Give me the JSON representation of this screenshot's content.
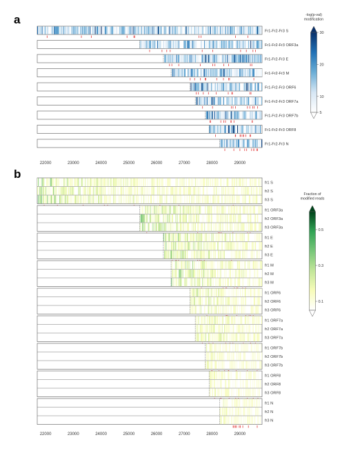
{
  "panel_a": {
    "letter": "a"
  },
  "panel_b": {
    "letter": "b"
  },
  "chart_data": [
    {
      "type": "heatmap",
      "panel": "a",
      "x_range": [
        21700,
        29800
      ],
      "x_ticks": [
        22000,
        23000,
        24000,
        25000,
        26000,
        27000,
        28000,
        29000
      ],
      "tracks": [
        {
          "label": "Fr1-Fr2-Fr3 S",
          "start": 21700
        },
        {
          "label": "Fr1-Fr2-Fr3 ORF3a",
          "start": 25393
        },
        {
          "label": "Fr1-Fr2-Fr3 E",
          "start": 26245
        },
        {
          "label": "Fr1-Fr2-Fr3 M",
          "start": 26523
        },
        {
          "label": "Fr1-Fr2-Fr3 ORF6",
          "start": 27202
        },
        {
          "label": "Fr1-Fr2-Fr3 ORF7a",
          "start": 27394
        },
        {
          "label": "Fr1-Fr2-Fr3 ORF7b",
          "start": 27756
        },
        {
          "label": "Fr1-Fr2-Fr3 ORF8",
          "start": 27894
        },
        {
          "label": "Fr1-Fr2-Fr3 N",
          "start": 28274
        }
      ],
      "colorbar": {
        "title": [
          "-log(p-val)",
          "modification"
        ],
        "min": 5,
        "max": 30,
        "ticks": [
          5,
          10,
          20,
          30
        ],
        "colors": [
          "#ffffff",
          "#d6e6f4",
          "#6baed6",
          "#2171b5",
          "#08306b"
        ]
      }
    },
    {
      "type": "heatmap",
      "panel": "b",
      "x_range": [
        21700,
        29800
      ],
      "x_ticks": [
        22000,
        23000,
        24000,
        25000,
        26000,
        27000,
        28000,
        29000
      ],
      "groups": [
        {
          "name": "S",
          "start": 21700,
          "rows": [
            "fr1 S",
            "fr2 S",
            "fr3 S"
          ]
        },
        {
          "name": "ORF3a",
          "start": 25393,
          "rows": [
            "fr1 ORF3a",
            "fr2 ORF3a",
            "fr3 ORF3a"
          ]
        },
        {
          "name": "E",
          "start": 26245,
          "rows": [
            "fr1 E",
            "fr2 E",
            "fr3 E"
          ]
        },
        {
          "name": "M",
          "start": 26523,
          "rows": [
            "fr1 M",
            "fr2 M",
            "fr3 M"
          ]
        },
        {
          "name": "ORF6",
          "start": 27202,
          "rows": [
            "fr1 ORF6",
            "fr2 ORF6",
            "fr3 ORF6"
          ]
        },
        {
          "name": "ORF7a",
          "start": 27394,
          "rows": [
            "fr1 ORF7a",
            "fr2 ORF7a",
            "fr3 ORF7a"
          ]
        },
        {
          "name": "ORF7b",
          "start": 27756,
          "rows": [
            "fr1 ORF7b",
            "fr2 ORF7b",
            "fr3 ORF7b"
          ]
        },
        {
          "name": "ORF8",
          "start": 27894,
          "rows": [
            "fr1 ORF8",
            "fr2 ORF8",
            "fr3 ORF8"
          ]
        },
        {
          "name": "N",
          "start": 28274,
          "rows": [
            "fr1 N",
            "fr2 N",
            "fr3 N"
          ]
        }
      ],
      "colorbar": {
        "title": [
          "Fraction of",
          "modified reads"
        ],
        "min": 0.05,
        "max": 0.6,
        "ticks": [
          "0.1",
          "0.3",
          "0.5"
        ],
        "tick_values": [
          0.1,
          0.3,
          0.5
        ],
        "colors": [
          "#ffffff",
          "#f7fcb9",
          "#c2e699",
          "#78c679",
          "#31a354",
          "#00441b"
        ]
      }
    }
  ]
}
